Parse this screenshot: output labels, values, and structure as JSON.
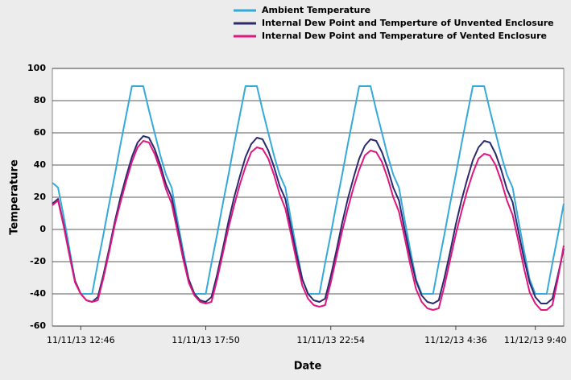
{
  "chart_data": {
    "type": "line",
    "x_label": "Date",
    "y_label": "Temperature",
    "categories": [
      null,
      null,
      null,
      null,
      null,
      "11/11/13 12:46",
      null,
      null,
      null,
      null,
      null,
      null,
      null,
      null,
      null,
      null,
      null,
      null,
      null,
      null,
      null,
      null,
      null,
      null,
      null,
      null,
      null,
      "11/11/13 17:50",
      null,
      null,
      null,
      null,
      null,
      null,
      null,
      null,
      null,
      null,
      null,
      null,
      null,
      null,
      null,
      null,
      null,
      null,
      null,
      null,
      null,
      "11/11/13 22:54",
      null,
      null,
      null,
      null,
      null,
      null,
      null,
      null,
      null,
      null,
      null,
      null,
      null,
      null,
      null,
      null,
      null,
      null,
      null,
      null,
      null,
      "11/12/13 4:36",
      null,
      null,
      null,
      null,
      null,
      null,
      null,
      null,
      null,
      null,
      null,
      null,
      null,
      "11/12/13 9:40",
      null,
      null,
      null,
      null,
      null
    ],
    "series": [
      {
        "name": "Ambient Temperature",
        "color": "#35a9d9",
        "values": [
          29,
          26,
          8,
          -12,
          -32,
          -40,
          -40,
          -40,
          -21,
          -3,
          16,
          34,
          53,
          71,
          89,
          89,
          89,
          74,
          60,
          46,
          34,
          26,
          6,
          -13,
          -31,
          -40,
          -40,
          -40,
          -21,
          -3,
          16,
          34,
          53,
          71,
          89,
          89,
          89,
          74,
          60,
          46,
          34,
          26,
          6,
          -13,
          -31,
          -40,
          -40,
          -40,
          -21,
          -3,
          16,
          34,
          53,
          71,
          89,
          89,
          89,
          74,
          60,
          46,
          34,
          26,
          6,
          -13,
          -31,
          -40,
          -40,
          -40,
          -21,
          -3,
          16,
          34,
          53,
          71,
          89,
          89,
          89,
          74,
          60,
          46,
          34,
          26,
          6,
          -13,
          -31,
          -40,
          -40,
          -40,
          -21,
          -3,
          16
        ]
      },
      {
        "name": "Internal Dew Point and Temperture of Unvented Enclosure",
        "color": "#2b2a6e",
        "values": [
          16,
          19,
          3,
          -15,
          -32,
          -40,
          -44,
          -45,
          -42,
          -28,
          -12,
          5,
          20,
          33,
          45,
          54,
          58,
          57,
          50,
          40,
          28,
          20,
          2,
          -16,
          -31,
          -40,
          -44,
          -45,
          -42,
          -28,
          -12,
          5,
          20,
          33,
          45,
          53,
          57,
          56,
          49,
          39,
          27,
          19,
          1,
          -16,
          -31,
          -40,
          -44,
          -45,
          -43,
          -29,
          -13,
          4,
          19,
          32,
          44,
          52,
          56,
          55,
          48,
          38,
          26,
          18,
          0,
          -17,
          -32,
          -41,
          -45,
          -46,
          -44,
          -30,
          -14,
          3,
          18,
          31,
          43,
          51,
          55,
          54,
          47,
          37,
          25,
          17,
          -1,
          -18,
          -33,
          -42,
          -46,
          -46,
          -43,
          -28,
          -12
        ]
      },
      {
        "name": "Internal Dew Point and Temperature of Vented Enclosure",
        "color": "#e0157f",
        "values": [
          15,
          18,
          2,
          -16,
          -33,
          -40,
          -44,
          -45,
          -44,
          -30,
          -14,
          3,
          17,
          30,
          42,
          51,
          55,
          54,
          47,
          37,
          25,
          16,
          -1,
          -18,
          -33,
          -41,
          -45,
          -46,
          -45,
          -31,
          -15,
          1,
          15,
          28,
          39,
          48,
          51,
          50,
          44,
          34,
          22,
          13,
          -3,
          -20,
          -35,
          -43,
          -47,
          -48,
          -47,
          -33,
          -17,
          -1,
          13,
          26,
          37,
          46,
          49,
          48,
          42,
          32,
          20,
          11,
          -5,
          -22,
          -37,
          -45,
          -49,
          -50,
          -49,
          -35,
          -19,
          -3,
          11,
          24,
          35,
          44,
          47,
          46,
          40,
          30,
          18,
          9,
          -7,
          -24,
          -39,
          -46,
          -50,
          -50,
          -47,
          -30,
          -10
        ]
      }
    ],
    "ylim": [
      -60,
      100
    ],
    "yticks": [
      -60,
      -40,
      -20,
      0,
      20,
      40,
      60,
      80,
      100
    ],
    "grid": true
  }
}
